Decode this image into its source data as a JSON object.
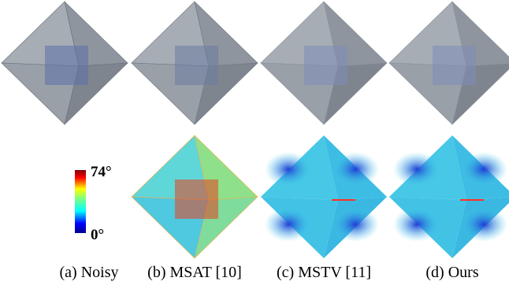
{
  "figure": {
    "colorbar": {
      "max_label": "74°",
      "min_label": "0°"
    },
    "captions": [
      "(a) Noisy",
      "(b) MSAT [10]",
      "(c) MSTV [11]",
      "(d) Ours"
    ]
  }
}
